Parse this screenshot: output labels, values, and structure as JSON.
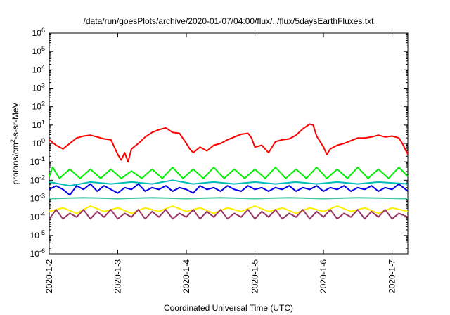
{
  "chart_data": {
    "type": "line",
    "title": "/data/run/goesPlots/archive/2020-01-07/04:00/flux/../flux/5daysEarthFluxes.txt",
    "xlabel": "Coordinated Universal Time (UTC)",
    "ylabel": "protons/cm²-s-sr-MeV",
    "ylabel_parts": [
      "protons/cm",
      "2",
      "-s-sr-MeV"
    ],
    "yscale": "log",
    "ylim_exp": [
      -6,
      6
    ],
    "ytick_labels": [
      {
        "exp": -6,
        "base": "10",
        "sup": "-6"
      },
      {
        "exp": -5,
        "base": "10",
        "sup": "-5"
      },
      {
        "exp": -4,
        "base": "10",
        "sup": "-4"
      },
      {
        "exp": -3,
        "base": "10",
        "sup": "-3"
      },
      {
        "exp": -2,
        "base": "10",
        "sup": "-2"
      },
      {
        "exp": -1,
        "base": "10",
        "sup": "-1"
      },
      {
        "exp": 0,
        "base": "10",
        "sup": "0"
      },
      {
        "exp": 1,
        "base": "10",
        "sup": "1"
      },
      {
        "exp": 2,
        "base": "10",
        "sup": "2"
      },
      {
        "exp": 3,
        "base": "10",
        "sup": "3"
      },
      {
        "exp": 4,
        "base": "10",
        "sup": "4"
      },
      {
        "exp": 5,
        "base": "10",
        "sup": "5"
      },
      {
        "exp": 6,
        "base": "10",
        "sup": "6"
      }
    ],
    "xlim_days": [
      0,
      5.23
    ],
    "xticks": [
      {
        "day": 0,
        "label": "2020-1-2"
      },
      {
        "day": 1,
        "label": "2020-1-3"
      },
      {
        "day": 2,
        "label": "2020-1-4"
      },
      {
        "day": 3,
        "label": "2020-1-5"
      },
      {
        "day": 4,
        "label": "2020-1-6"
      },
      {
        "day": 5,
        "label": "2020-1-7"
      }
    ],
    "grid": false,
    "legend": "none",
    "series": [
      {
        "color": "#ff0000",
        "key": "red",
        "width": 2,
        "points": [
          [
            0,
            0.2
          ],
          [
            0.1,
            -0.1
          ],
          [
            0.2,
            -0.3
          ],
          [
            0.3,
            0
          ],
          [
            0.4,
            0.3
          ],
          [
            0.5,
            0.4
          ],
          [
            0.6,
            0.45
          ],
          [
            0.7,
            0.35
          ],
          [
            0.8,
            0.25
          ],
          [
            0.9,
            0.2
          ],
          [
            0.95,
            -0.2
          ],
          [
            1.0,
            -0.6
          ],
          [
            1.05,
            -0.9
          ],
          [
            1.1,
            -0.5
          ],
          [
            1.15,
            -1.0
          ],
          [
            1.2,
            -0.3
          ],
          [
            1.3,
            0
          ],
          [
            1.4,
            0.35
          ],
          [
            1.5,
            0.6
          ],
          [
            1.6,
            0.75
          ],
          [
            1.7,
            0.85
          ],
          [
            1.8,
            0.6
          ],
          [
            1.9,
            0.55
          ],
          [
            2.0,
            0
          ],
          [
            2.05,
            -0.3
          ],
          [
            2.1,
            -0.5
          ],
          [
            2.2,
            -0.2
          ],
          [
            2.3,
            -0.4
          ],
          [
            2.4,
            -0.1
          ],
          [
            2.5,
            0
          ],
          [
            2.6,
            0.2
          ],
          [
            2.7,
            0.35
          ],
          [
            2.8,
            0.5
          ],
          [
            2.9,
            0.55
          ],
          [
            2.95,
            0.3
          ],
          [
            3.0,
            -0.2
          ],
          [
            3.1,
            -0.1
          ],
          [
            3.2,
            -0.5
          ],
          [
            3.3,
            0.1
          ],
          [
            3.4,
            0.2
          ],
          [
            3.5,
            0.25
          ],
          [
            3.6,
            0.45
          ],
          [
            3.7,
            0.8
          ],
          [
            3.8,
            1.05
          ],
          [
            3.85,
            1.0
          ],
          [
            3.9,
            0.4
          ],
          [
            4.0,
            -0.2
          ],
          [
            4.05,
            -0.6
          ],
          [
            4.1,
            -0.3
          ],
          [
            4.2,
            -0.1
          ],
          [
            4.3,
            0
          ],
          [
            4.4,
            0.15
          ],
          [
            4.5,
            0.3
          ],
          [
            4.6,
            0.3
          ],
          [
            4.7,
            0.35
          ],
          [
            4.8,
            0.45
          ],
          [
            4.9,
            0.35
          ],
          [
            5.0,
            0.4
          ],
          [
            5.1,
            0.3
          ],
          [
            5.15,
            0
          ],
          [
            5.23,
            -0.6
          ]
        ]
      },
      {
        "color": "#00ee00",
        "key": "green",
        "width": 2,
        "points": [
          [
            0,
            -1.8
          ],
          [
            0.05,
            -1.3
          ],
          [
            0.15,
            -1.9
          ],
          [
            0.3,
            -1.4
          ],
          [
            0.45,
            -1.9
          ],
          [
            0.6,
            -1.4
          ],
          [
            0.75,
            -1.9
          ],
          [
            0.9,
            -1.4
          ],
          [
            1.05,
            -1.9
          ],
          [
            1.2,
            -1.5
          ],
          [
            1.35,
            -1.9
          ],
          [
            1.5,
            -1.4
          ],
          [
            1.65,
            -1.9
          ],
          [
            1.8,
            -1.3
          ],
          [
            1.95,
            -1.9
          ],
          [
            2.1,
            -1.4
          ],
          [
            2.25,
            -1.9
          ],
          [
            2.4,
            -1.3
          ],
          [
            2.55,
            -1.9
          ],
          [
            2.7,
            -1.4
          ],
          [
            2.85,
            -1.9
          ],
          [
            3.0,
            -1.4
          ],
          [
            3.15,
            -1.9
          ],
          [
            3.3,
            -1.3
          ],
          [
            3.45,
            -1.9
          ],
          [
            3.6,
            -1.4
          ],
          [
            3.75,
            -1.9
          ],
          [
            3.9,
            -1.3
          ],
          [
            4.05,
            -1.9
          ],
          [
            4.2,
            -1.4
          ],
          [
            4.35,
            -1.9
          ],
          [
            4.5,
            -1.3
          ],
          [
            4.65,
            -1.9
          ],
          [
            4.8,
            -1.4
          ],
          [
            4.95,
            -1.9
          ],
          [
            5.1,
            -1.3
          ],
          [
            5.23,
            -1.8
          ]
        ]
      },
      {
        "color": "#0000ee",
        "key": "blue",
        "width": 2,
        "points": [
          [
            0,
            -2.5
          ],
          [
            0.1,
            -2.3
          ],
          [
            0.2,
            -2.5
          ],
          [
            0.3,
            -2.8
          ],
          [
            0.4,
            -2.3
          ],
          [
            0.5,
            -2.5
          ],
          [
            0.6,
            -2.2
          ],
          [
            0.7,
            -2.6
          ],
          [
            0.8,
            -2.3
          ],
          [
            0.9,
            -2.5
          ],
          [
            1.0,
            -2.7
          ],
          [
            1.1,
            -2.4
          ],
          [
            1.2,
            -2.5
          ],
          [
            1.3,
            -2.2
          ],
          [
            1.4,
            -2.6
          ],
          [
            1.5,
            -2.4
          ],
          [
            1.6,
            -2.5
          ],
          [
            1.7,
            -2.3
          ],
          [
            1.8,
            -2.6
          ],
          [
            1.9,
            -2.4
          ],
          [
            2.0,
            -2.5
          ],
          [
            2.1,
            -2.7
          ],
          [
            2.2,
            -2.3
          ],
          [
            2.3,
            -2.5
          ],
          [
            2.4,
            -2.4
          ],
          [
            2.5,
            -2.6
          ],
          [
            2.6,
            -2.3
          ],
          [
            2.7,
            -2.5
          ],
          [
            2.8,
            -2.6
          ],
          [
            2.9,
            -2.3
          ],
          [
            3.0,
            -2.5
          ],
          [
            3.1,
            -2.4
          ],
          [
            3.2,
            -2.6
          ],
          [
            3.3,
            -2.4
          ],
          [
            3.4,
            -2.5
          ],
          [
            3.5,
            -2.3
          ],
          [
            3.6,
            -2.6
          ],
          [
            3.7,
            -2.4
          ],
          [
            3.8,
            -2.5
          ],
          [
            3.9,
            -2.3
          ],
          [
            4.0,
            -2.6
          ],
          [
            4.1,
            -2.4
          ],
          [
            4.2,
            -2.5
          ],
          [
            4.3,
            -2.3
          ],
          [
            4.4,
            -2.6
          ],
          [
            4.5,
            -2.4
          ],
          [
            4.6,
            -2.5
          ],
          [
            4.7,
            -2.3
          ],
          [
            4.8,
            -2.6
          ],
          [
            4.9,
            -2.4
          ],
          [
            5.0,
            -2.5
          ],
          [
            5.1,
            -2.2
          ],
          [
            5.23,
            -2.6
          ]
        ]
      },
      {
        "color": "#00bbbb",
        "key": "cyan",
        "width": 2,
        "points": [
          [
            0,
            -2.1
          ],
          [
            0.3,
            -2.3
          ],
          [
            0.6,
            -2.1
          ],
          [
            0.9,
            -2.2
          ],
          [
            1.2,
            -2.1
          ],
          [
            1.5,
            -2.2
          ],
          [
            1.8,
            -2.0
          ],
          [
            2.1,
            -2.2
          ],
          [
            2.4,
            -2.1
          ],
          [
            2.7,
            -2.2
          ],
          [
            3.0,
            -2.1
          ],
          [
            3.3,
            -2.2
          ],
          [
            3.6,
            -2.1
          ],
          [
            3.9,
            -2.2
          ],
          [
            4.2,
            -2.1
          ],
          [
            4.5,
            -2.2
          ],
          [
            4.8,
            -2.1
          ],
          [
            5.23,
            -2.2
          ]
        ]
      },
      {
        "color": "#40c8a0",
        "key": "teal",
        "width": 2,
        "points": [
          [
            0,
            -3.0
          ],
          [
            0.5,
            -2.95
          ],
          [
            1.0,
            -3.0
          ],
          [
            1.5,
            -2.95
          ],
          [
            2.0,
            -3.0
          ],
          [
            2.5,
            -2.95
          ],
          [
            3.0,
            -3.0
          ],
          [
            3.5,
            -2.95
          ],
          [
            4.0,
            -3.0
          ],
          [
            4.5,
            -2.95
          ],
          [
            5.23,
            -3.0
          ]
        ]
      },
      {
        "color": "#ffee00",
        "key": "yellow",
        "width": 2,
        "points": [
          [
            0,
            -3.7
          ],
          [
            0.2,
            -3.5
          ],
          [
            0.4,
            -3.8
          ],
          [
            0.6,
            -3.4
          ],
          [
            0.8,
            -3.7
          ],
          [
            1.0,
            -3.5
          ],
          [
            1.2,
            -3.8
          ],
          [
            1.4,
            -3.5
          ],
          [
            1.6,
            -3.7
          ],
          [
            1.8,
            -3.4
          ],
          [
            2.0,
            -3.7
          ],
          [
            2.2,
            -3.5
          ],
          [
            2.4,
            -3.8
          ],
          [
            2.6,
            -3.5
          ],
          [
            2.8,
            -3.7
          ],
          [
            3.0,
            -3.4
          ],
          [
            3.2,
            -3.7
          ],
          [
            3.4,
            -3.5
          ],
          [
            3.6,
            -3.8
          ],
          [
            3.8,
            -3.5
          ],
          [
            4.0,
            -3.7
          ],
          [
            4.2,
            -3.4
          ],
          [
            4.4,
            -3.7
          ],
          [
            4.6,
            -3.5
          ],
          [
            4.8,
            -3.8
          ],
          [
            5.0,
            -3.5
          ],
          [
            5.23,
            -3.7
          ]
        ]
      },
      {
        "color": "#993366",
        "key": "purple",
        "width": 2,
        "points": [
          [
            0,
            -4.1
          ],
          [
            0.1,
            -3.6
          ],
          [
            0.2,
            -4.1
          ],
          [
            0.3,
            -3.8
          ],
          [
            0.4,
            -4.0
          ],
          [
            0.5,
            -3.6
          ],
          [
            0.6,
            -4.1
          ],
          [
            0.7,
            -3.7
          ],
          [
            0.8,
            -4.0
          ],
          [
            0.9,
            -3.6
          ],
          [
            1.0,
            -4.1
          ],
          [
            1.1,
            -3.8
          ],
          [
            1.2,
            -4.0
          ],
          [
            1.3,
            -3.6
          ],
          [
            1.4,
            -4.1
          ],
          [
            1.5,
            -3.7
          ],
          [
            1.6,
            -4.0
          ],
          [
            1.7,
            -3.6
          ],
          [
            1.8,
            -4.1
          ],
          [
            1.9,
            -3.8
          ],
          [
            2.0,
            -4.0
          ],
          [
            2.1,
            -3.6
          ],
          [
            2.2,
            -4.1
          ],
          [
            2.3,
            -3.7
          ],
          [
            2.4,
            -4.0
          ],
          [
            2.5,
            -3.6
          ],
          [
            2.6,
            -4.1
          ],
          [
            2.7,
            -3.8
          ],
          [
            2.8,
            -4.0
          ],
          [
            2.9,
            -3.6
          ],
          [
            3.0,
            -4.1
          ],
          [
            3.1,
            -3.7
          ],
          [
            3.2,
            -4.0
          ],
          [
            3.3,
            -3.6
          ],
          [
            3.4,
            -4.1
          ],
          [
            3.5,
            -3.8
          ],
          [
            3.6,
            -4.0
          ],
          [
            3.7,
            -3.6
          ],
          [
            3.8,
            -4.1
          ],
          [
            3.9,
            -3.7
          ],
          [
            4.0,
            -4.0
          ],
          [
            4.1,
            -3.6
          ],
          [
            4.2,
            -4.1
          ],
          [
            4.3,
            -3.8
          ],
          [
            4.4,
            -4.0
          ],
          [
            4.5,
            -3.6
          ],
          [
            4.6,
            -4.1
          ],
          [
            4.7,
            -3.7
          ],
          [
            4.8,
            -4.0
          ],
          [
            4.9,
            -3.6
          ],
          [
            5.0,
            -4.1
          ],
          [
            5.1,
            -3.8
          ],
          [
            5.23,
            -4.0
          ]
        ]
      }
    ]
  }
}
